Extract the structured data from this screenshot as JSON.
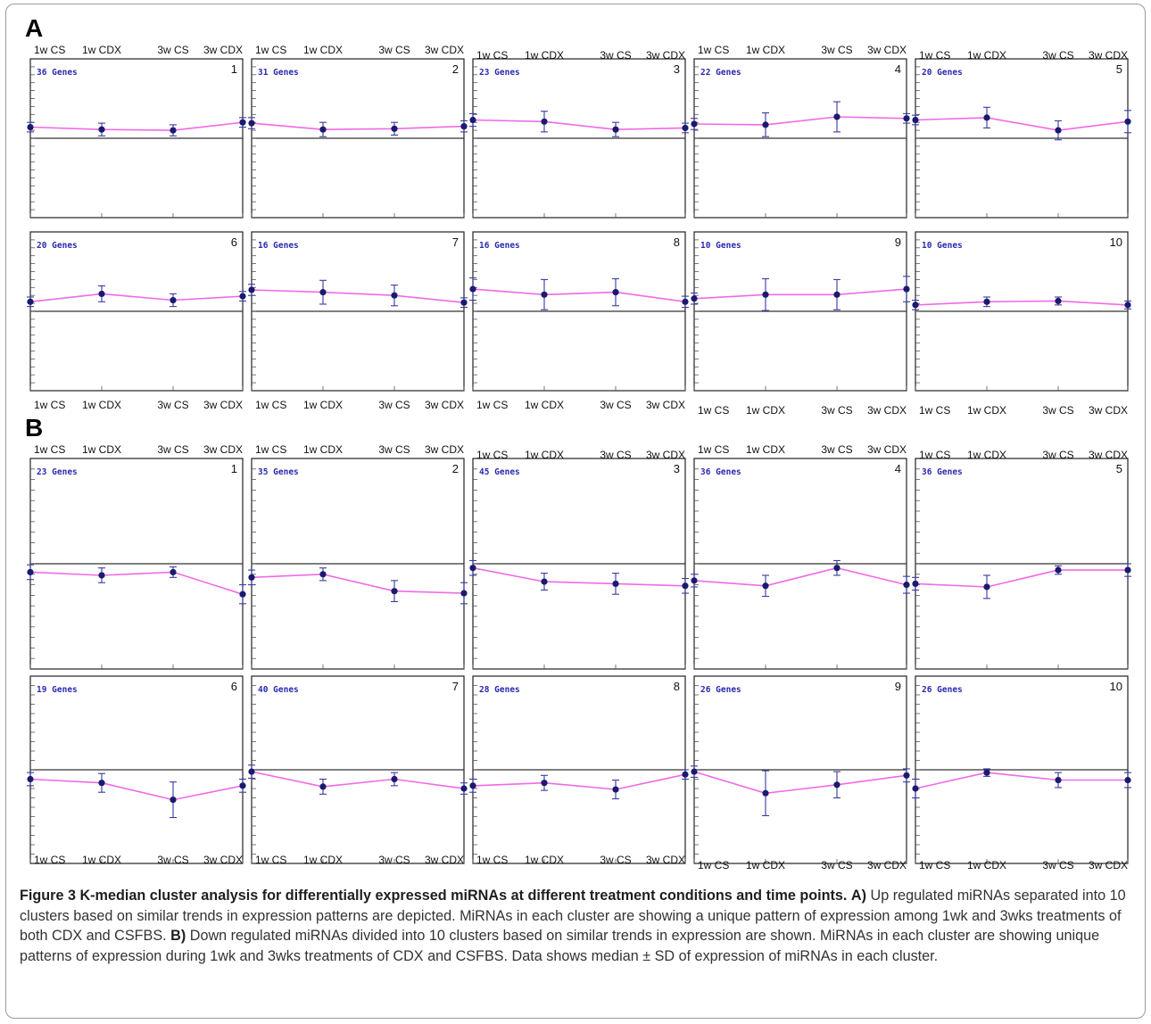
{
  "figure": {
    "panel_a_letter": "A",
    "panel_b_letter": "B"
  },
  "caption": {
    "label": "Figure 3",
    "title": "K-median cluster analysis for differentially expressed miRNAs at different treatment conditions and time points.",
    "a_marker": "A)",
    "a_text": "Up regulated miRNAs separated into 10 clusters based on similar trends in expression patterns are depicted. MiRNAs in each cluster are showing a unique pattern of expression among 1wk and 3wks treatments of both CDX and CSFBS.",
    "b_marker": "B)",
    "b_text": "Down regulated miRNAs divided into 10 clusters based on similar trends in expression are shown. MiRNAs in each cluster are showing unique patterns of expression during 1wk and 3wks treatments of CDX and CSFBS. Data shows median ± SD of expression of miRNAs in each cluster."
  },
  "colors": {
    "line": "#f06ae6",
    "marker": "#1a1a6e",
    "errorbar": "#3a3aa0",
    "genes_text": "#2a2ab0",
    "frame": "#222222"
  },
  "chart_data": [
    {
      "panel": "A",
      "type": "line",
      "categories": [
        "1w CS",
        "1w CDX",
        "3w CS",
        "3w CDX"
      ],
      "clusters": [
        {
          "id": "1",
          "genes": "36 Genes",
          "values": [
            0.14,
            0.11,
            0.1,
            0.2
          ],
          "sd": [
            0.06,
            0.08,
            0.07,
            0.06
          ]
        },
        {
          "id": "2",
          "genes": "31 Genes",
          "values": [
            0.19,
            0.11,
            0.12,
            0.15
          ],
          "sd": [
            0.07,
            0.09,
            0.08,
            0.07
          ]
        },
        {
          "id": "3",
          "genes": "23 Genes",
          "values": [
            0.23,
            0.21,
            0.11,
            0.13
          ],
          "sd": [
            0.08,
            0.13,
            0.09,
            0.06
          ]
        },
        {
          "id": "4",
          "genes": "22 Genes",
          "values": [
            0.18,
            0.17,
            0.27,
            0.25
          ],
          "sd": [
            0.07,
            0.15,
            0.19,
            0.06
          ]
        },
        {
          "id": "5",
          "genes": "20 Genes",
          "values": [
            0.23,
            0.26,
            0.1,
            0.21
          ],
          "sd": [
            0.06,
            0.13,
            0.12,
            0.14
          ]
        },
        {
          "id": "6",
          "genes": "20 Genes",
          "values": [
            0.12,
            0.22,
            0.14,
            0.19
          ],
          "sd": [
            0.06,
            0.1,
            0.08,
            0.06
          ]
        },
        {
          "id": "7",
          "genes": "16 Genes",
          "values": [
            0.27,
            0.24,
            0.2,
            0.11
          ],
          "sd": [
            0.07,
            0.15,
            0.13,
            0.06
          ]
        },
        {
          "id": "8",
          "genes": "16 Genes",
          "values": [
            0.28,
            0.21,
            0.24,
            0.12
          ],
          "sd": [
            0.14,
            0.19,
            0.17,
            0.07
          ]
        },
        {
          "id": "9",
          "genes": "10 Genes",
          "values": [
            0.16,
            0.21,
            0.21,
            0.28
          ],
          "sd": [
            0.07,
            0.2,
            0.19,
            0.16
          ]
        },
        {
          "id": "10",
          "genes": "10 Genes",
          "values": [
            0.08,
            0.12,
            0.13,
            0.08
          ],
          "sd": [
            0.06,
            0.06,
            0.05,
            0.05
          ]
        }
      ],
      "ylim": [
        -1,
        1
      ],
      "y_ticks": 20
    },
    {
      "panel": "B",
      "type": "line",
      "categories": [
        "1w CS",
        "1w CDX",
        "3w CS",
        "3w CDX"
      ],
      "clusters": [
        {
          "id": "1",
          "genes": "23 Genes",
          "values": [
            -0.08,
            -0.11,
            -0.08,
            -0.29
          ],
          "sd": [
            0.07,
            0.07,
            0.05,
            0.09
          ]
        },
        {
          "id": "2",
          "genes": "35 Genes",
          "values": [
            -0.13,
            -0.1,
            -0.26,
            -0.28
          ],
          "sd": [
            0.07,
            0.06,
            0.1,
            0.1
          ]
        },
        {
          "id": "3",
          "genes": "45 Genes",
          "values": [
            -0.04,
            -0.17,
            -0.19,
            -0.21
          ],
          "sd": [
            0.07,
            0.08,
            0.1,
            0.07
          ]
        },
        {
          "id": "4",
          "genes": "36 Genes",
          "values": [
            -0.16,
            -0.21,
            -0.04,
            -0.2
          ],
          "sd": [
            0.06,
            0.1,
            0.07,
            0.08
          ]
        },
        {
          "id": "5",
          "genes": "36 Genes",
          "values": [
            -0.19,
            -0.22,
            -0.06,
            -0.06
          ],
          "sd": [
            0.06,
            0.11,
            0.04,
            0.06
          ]
        },
        {
          "id": "6",
          "genes": "19 Genes",
          "values": [
            -0.1,
            -0.14,
            -0.32,
            -0.17
          ],
          "sd": [
            0.07,
            0.1,
            0.19,
            0.07
          ]
        },
        {
          "id": "7",
          "genes": "40 Genes",
          "values": [
            -0.02,
            -0.18,
            -0.1,
            -0.2
          ],
          "sd": [
            0.07,
            0.08,
            0.07,
            0.06
          ]
        },
        {
          "id": "8",
          "genes": "28 Genes",
          "values": [
            -0.17,
            -0.14,
            -0.21,
            -0.05
          ],
          "sd": [
            0.07,
            0.08,
            0.1,
            0.05
          ]
        },
        {
          "id": "9",
          "genes": "26 Genes",
          "values": [
            -0.02,
            -0.25,
            -0.16,
            -0.06
          ],
          "sd": [
            0.06,
            0.24,
            0.14,
            0.07
          ]
        },
        {
          "id": "10",
          "genes": "26 Genes",
          "values": [
            -0.2,
            -0.03,
            -0.11,
            -0.11
          ],
          "sd": [
            0.1,
            0.04,
            0.08,
            0.08
          ]
        }
      ],
      "ylim": [
        -1,
        1
      ],
      "y_ticks": 20
    }
  ]
}
